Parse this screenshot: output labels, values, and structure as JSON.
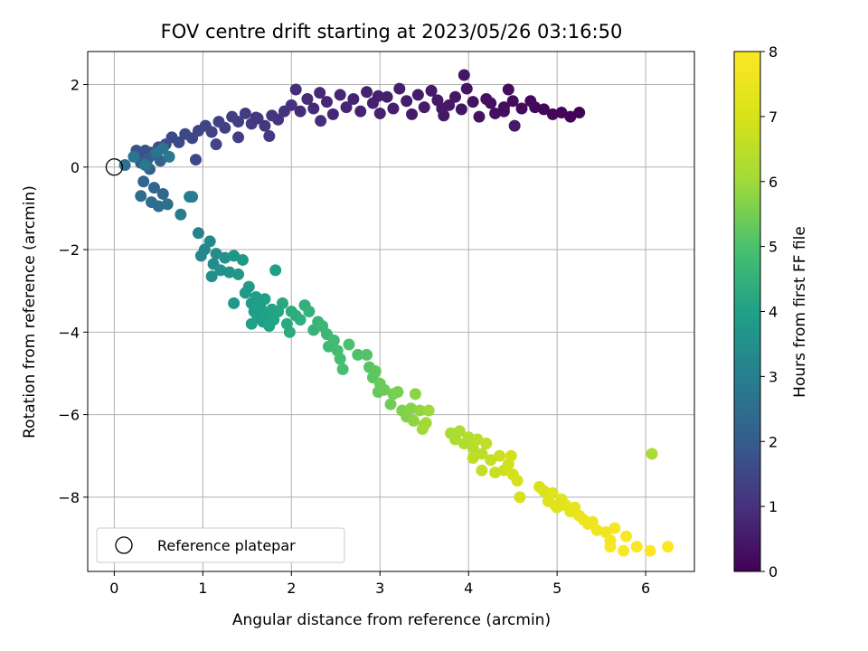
{
  "chart_data": {
    "type": "scatter",
    "title": "FOV centre drift starting at 2023/05/26 03:16:50",
    "xlabel": "Angular distance from reference (arcmin)",
    "ylabel": "Rotation from reference (arcmin)",
    "colorbar_label": "Hours from first FF file",
    "xlim": [
      -0.3,
      6.55
    ],
    "ylim": [
      -9.8,
      2.8
    ],
    "clim": [
      0,
      8
    ],
    "grid": true,
    "legend_position": "lower-left",
    "x_ticks": [
      0,
      1,
      2,
      3,
      4,
      5,
      6
    ],
    "y_ticks": [
      -8,
      -6,
      -4,
      -2,
      0,
      2
    ],
    "c_ticks": [
      0,
      1,
      2,
      3,
      4,
      5,
      6,
      7,
      8
    ],
    "colormap": "viridis",
    "reference_point": {
      "label": "Reference platepar",
      "x": 0,
      "y": 0
    },
    "series": [
      {
        "values": [
          [
            5.25,
            1.32,
            0.02
          ],
          [
            5.15,
            1.22,
            0.05
          ],
          [
            5.05,
            1.32,
            0.07
          ],
          [
            4.95,
            1.28,
            0.1
          ],
          [
            4.85,
            1.4,
            0.13
          ],
          [
            4.75,
            1.45,
            0.16
          ],
          [
            4.7,
            1.6,
            0.18
          ],
          [
            4.6,
            1.42,
            0.2
          ],
          [
            4.5,
            1.6,
            0.22
          ],
          [
            4.45,
            1.88,
            0.25
          ],
          [
            4.4,
            1.35,
            0.27
          ],
          [
            4.3,
            1.3,
            0.3
          ],
          [
            4.2,
            1.65,
            0.32
          ],
          [
            4.12,
            1.22,
            0.34
          ],
          [
            4.05,
            1.58,
            0.36
          ],
          [
            3.98,
            1.9,
            0.38
          ],
          [
            3.92,
            1.4,
            0.4
          ],
          [
            3.85,
            1.7,
            0.42
          ],
          [
            3.78,
            1.5,
            0.44
          ],
          [
            3.72,
            1.25,
            0.46
          ],
          [
            3.65,
            1.62,
            0.48
          ],
          [
            3.58,
            1.85,
            0.5
          ],
          [
            3.5,
            1.45,
            0.52
          ],
          [
            3.43,
            1.75,
            0.54
          ],
          [
            3.36,
            1.28,
            0.56
          ],
          [
            3.3,
            1.6,
            0.58
          ],
          [
            3.22,
            1.9,
            0.6
          ],
          [
            3.15,
            1.42,
            0.62
          ],
          [
            3.08,
            1.7,
            0.64
          ],
          [
            3.0,
            1.3,
            0.66
          ],
          [
            2.92,
            1.55,
            0.68
          ],
          [
            2.85,
            1.82,
            0.7
          ],
          [
            2.78,
            1.35,
            0.72
          ],
          [
            2.7,
            1.65,
            0.74
          ],
          [
            2.62,
            1.45,
            0.76
          ],
          [
            2.55,
            1.75,
            0.78
          ],
          [
            2.47,
            1.28,
            0.8
          ],
          [
            2.4,
            1.58,
            0.82
          ],
          [
            2.32,
            1.8,
            0.84
          ],
          [
            2.25,
            1.42,
            0.86
          ],
          [
            2.18,
            1.65,
            0.88
          ],
          [
            2.1,
            1.35,
            0.9
          ],
          [
            2.05,
            1.88,
            0.92
          ],
          [
            4.52,
            1.0,
            0.5
          ],
          [
            3.95,
            2.23,
            0.45
          ],
          [
            2.33,
            1.12,
            0.9
          ],
          [
            4.4,
            1.45,
            0.24
          ],
          [
            4.25,
            1.55,
            0.3
          ],
          [
            3.7,
            1.42,
            0.47
          ],
          [
            2.98,
            1.72,
            0.66
          ],
          [
            2.0,
            1.5,
            1.0
          ],
          [
            1.92,
            1.35,
            1.03
          ],
          [
            1.85,
            1.15,
            1.07
          ],
          [
            1.78,
            1.25,
            1.1
          ],
          [
            1.7,
            1.0,
            1.14
          ],
          [
            1.62,
            1.18,
            1.17
          ],
          [
            1.55,
            1.05,
            1.2
          ],
          [
            1.48,
            1.3,
            1.24
          ],
          [
            1.4,
            1.1,
            1.27
          ],
          [
            1.33,
            1.22,
            1.3
          ],
          [
            1.25,
            0.95,
            1.34
          ],
          [
            1.18,
            1.1,
            1.37
          ],
          [
            1.1,
            0.85,
            1.4
          ],
          [
            1.03,
            1.0,
            1.44
          ],
          [
            0.95,
            0.88,
            1.47
          ],
          [
            0.88,
            0.7,
            1.5
          ],
          [
            0.8,
            0.8,
            1.54
          ],
          [
            0.73,
            0.6,
            1.57
          ],
          [
            0.65,
            0.72,
            1.6
          ],
          [
            0.58,
            0.55,
            1.64
          ],
          [
            0.5,
            0.48,
            1.67
          ],
          [
            0.42,
            0.35,
            1.7
          ],
          [
            0.35,
            0.4,
            1.74
          ],
          [
            0.3,
            0.28,
            1.77
          ],
          [
            0.25,
            0.4,
            1.8
          ],
          [
            1.75,
            0.75,
            1.2
          ],
          [
            1.15,
            0.55,
            1.45
          ],
          [
            0.92,
            0.18,
            1.55
          ],
          [
            1.4,
            0.72,
            1.3
          ],
          [
            1.6,
            1.2,
            1.1
          ],
          [
            0.3,
            0.1,
            2.0
          ],
          [
            0.38,
            0.2,
            2.05
          ],
          [
            0.45,
            0.3,
            2.1
          ],
          [
            0.52,
            0.15,
            2.15
          ],
          [
            0.4,
            -0.05,
            2.2
          ],
          [
            0.33,
            -0.35,
            2.25
          ],
          [
            0.45,
            -0.5,
            2.3
          ],
          [
            0.55,
            -0.65,
            2.35
          ],
          [
            0.3,
            -0.7,
            2.4
          ],
          [
            0.42,
            -0.85,
            2.45
          ],
          [
            0.5,
            -0.95,
            2.5
          ],
          [
            0.6,
            -0.9,
            2.55
          ],
          [
            0.12,
            0.05,
            2.6
          ],
          [
            0.48,
            0.35,
            2.65
          ],
          [
            0.22,
            0.25,
            2.7
          ],
          [
            0.55,
            0.45,
            2.75
          ],
          [
            0.35,
            0.05,
            2.8
          ],
          [
            0.62,
            0.25,
            2.85
          ],
          [
            0.75,
            -1.15,
            2.9
          ],
          [
            0.85,
            -0.72,
            2.95
          ],
          [
            0.88,
            -0.72,
            3.0
          ],
          [
            0.95,
            -1.6,
            3.1
          ],
          [
            1.02,
            -2.0,
            3.2
          ],
          [
            0.98,
            -2.15,
            3.25
          ],
          [
            1.08,
            -1.8,
            3.3
          ],
          [
            1.12,
            -2.35,
            3.35
          ],
          [
            1.15,
            -2.1,
            3.4
          ],
          [
            1.1,
            -2.65,
            3.45
          ],
          [
            1.2,
            -2.5,
            3.5
          ],
          [
            1.25,
            -2.2,
            3.55
          ],
          [
            1.3,
            -2.55,
            3.6
          ],
          [
            1.35,
            -2.15,
            3.65
          ],
          [
            1.4,
            -2.6,
            3.7
          ],
          [
            1.45,
            -2.25,
            3.75
          ],
          [
            1.52,
            -2.9,
            3.8
          ],
          [
            1.48,
            -3.05,
            3.82
          ],
          [
            1.55,
            -3.3,
            3.85
          ],
          [
            1.58,
            -3.5,
            3.87
          ],
          [
            1.6,
            -3.15,
            3.9
          ],
          [
            1.62,
            -3.65,
            3.92
          ],
          [
            1.65,
            -3.4,
            3.95
          ],
          [
            1.68,
            -3.75,
            3.97
          ],
          [
            1.7,
            -3.2,
            4.0
          ],
          [
            1.73,
            -3.55,
            4.02
          ],
          [
            1.75,
            -3.85,
            4.05
          ],
          [
            1.78,
            -3.45,
            4.07
          ],
          [
            1.8,
            -3.7,
            4.1
          ],
          [
            1.55,
            -3.8,
            4.0
          ],
          [
            1.82,
            -2.5,
            4.0
          ],
          [
            1.35,
            -3.3,
            3.75
          ],
          [
            1.85,
            -3.5,
            4.15
          ],
          [
            1.9,
            -3.3,
            4.2
          ],
          [
            1.95,
            -3.8,
            4.25
          ],
          [
            2.0,
            -3.5,
            4.3
          ],
          [
            2.05,
            -3.6,
            4.35
          ],
          [
            2.1,
            -3.7,
            4.4
          ],
          [
            1.98,
            -4.0,
            4.3
          ],
          [
            2.15,
            -3.35,
            4.45
          ],
          [
            2.2,
            -3.5,
            4.5
          ],
          [
            2.25,
            -3.95,
            4.55
          ],
          [
            2.3,
            -3.75,
            4.6
          ],
          [
            2.35,
            -3.85,
            4.65
          ],
          [
            2.4,
            -4.05,
            4.7
          ],
          [
            2.42,
            -4.35,
            4.75
          ],
          [
            2.48,
            -4.2,
            4.8
          ],
          [
            2.52,
            -4.45,
            4.85
          ],
          [
            2.55,
            -4.65,
            4.9
          ],
          [
            2.58,
            -4.9,
            4.95
          ],
          [
            2.65,
            -4.3,
            5.0
          ],
          [
            2.75,
            -4.55,
            5.05
          ],
          [
            2.85,
            -4.55,
            5.1
          ],
          [
            2.88,
            -4.85,
            5.15
          ],
          [
            2.92,
            -5.1,
            5.2
          ],
          [
            2.95,
            -4.95,
            5.25
          ],
          [
            2.98,
            -5.45,
            5.3
          ],
          [
            3.0,
            -5.25,
            5.35
          ],
          [
            3.05,
            -5.4,
            5.4
          ],
          [
            3.12,
            -5.75,
            5.45
          ],
          [
            3.15,
            -5.5,
            5.5
          ],
          [
            3.2,
            -5.45,
            5.55
          ],
          [
            3.25,
            -5.9,
            5.6
          ],
          [
            3.3,
            -6.05,
            5.65
          ],
          [
            3.35,
            -5.85,
            5.7
          ],
          [
            3.4,
            -5.5,
            5.75
          ],
          [
            3.38,
            -6.15,
            5.8
          ],
          [
            3.45,
            -5.9,
            5.85
          ],
          [
            3.5,
            -6.25,
            5.9
          ],
          [
            3.55,
            -5.9,
            5.95
          ],
          [
            3.48,
            -6.35,
            6.0
          ],
          [
            3.52,
            -6.2,
            6.05
          ],
          [
            3.8,
            -6.45,
            6.15
          ],
          [
            3.85,
            -6.6,
            6.2
          ],
          [
            3.9,
            -6.4,
            6.25
          ],
          [
            3.95,
            -6.7,
            6.3
          ],
          [
            4.0,
            -6.55,
            6.35
          ],
          [
            4.05,
            -6.8,
            6.4
          ],
          [
            4.1,
            -6.6,
            6.45
          ],
          [
            4.15,
            -6.95,
            6.5
          ],
          [
            4.2,
            -6.7,
            6.55
          ],
          [
            4.05,
            -7.05,
            6.5
          ],
          [
            4.15,
            -7.35,
            6.6
          ],
          [
            4.25,
            -7.1,
            6.65
          ],
          [
            4.3,
            -7.4,
            6.7
          ],
          [
            4.35,
            -7.0,
            6.75
          ],
          [
            4.4,
            -7.35,
            6.8
          ],
          [
            4.45,
            -7.2,
            6.85
          ],
          [
            4.5,
            -7.45,
            6.9
          ],
          [
            4.55,
            -7.6,
            6.92
          ],
          [
            4.58,
            -8.0,
            6.95
          ],
          [
            4.48,
            -7.0,
            6.9
          ],
          [
            6.07,
            -6.95,
            6.2
          ],
          [
            4.8,
            -7.75,
            7.0
          ],
          [
            4.85,
            -7.85,
            7.05
          ],
          [
            4.9,
            -8.1,
            7.1
          ],
          [
            4.95,
            -7.9,
            7.15
          ],
          [
            5.0,
            -8.25,
            7.2
          ],
          [
            5.05,
            -8.05,
            7.25
          ],
          [
            5.1,
            -8.2,
            7.3
          ],
          [
            5.15,
            -8.35,
            7.35
          ],
          [
            5.2,
            -8.25,
            7.4
          ],
          [
            5.25,
            -8.45,
            7.45
          ],
          [
            5.3,
            -8.55,
            7.5
          ],
          [
            5.35,
            -8.65,
            7.55
          ],
          [
            5.4,
            -8.6,
            7.6
          ],
          [
            5.45,
            -8.8,
            7.65
          ],
          [
            5.55,
            -8.85,
            7.7
          ],
          [
            5.6,
            -9.05,
            7.75
          ],
          [
            5.65,
            -8.75,
            7.8
          ],
          [
            5.6,
            -9.2,
            7.85
          ],
          [
            5.75,
            -9.3,
            7.9
          ],
          [
            5.78,
            -8.95,
            7.92
          ],
          [
            5.9,
            -9.2,
            7.95
          ],
          [
            6.05,
            -9.3,
            8.0
          ],
          [
            6.25,
            -9.2,
            8.0
          ],
          [
            4.98,
            -8.2,
            7.15
          ]
        ]
      }
    ]
  }
}
